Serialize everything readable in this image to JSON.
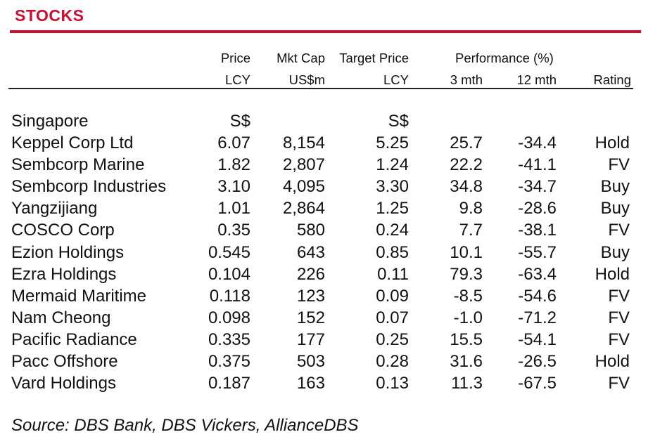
{
  "title": "STOCKS",
  "headers": {
    "price_top": "Price",
    "price_bottom": "LCY",
    "mcap_top": "Mkt Cap",
    "mcap_bottom": "US$m",
    "target_top": "Target Price",
    "target_bottom": "LCY",
    "performance_top": "Performance (%)",
    "m3_bottom": "3 mth",
    "m12_bottom": "12 mth",
    "rating_bottom": "Rating"
  },
  "section": {
    "name": "Singapore",
    "price_currency": "S$",
    "target_currency": "S$"
  },
  "rows": [
    {
      "name": "Keppel Corp Ltd",
      "price": "6.07",
      "mcap": "8,154",
      "target": "5.25",
      "m3": "25.7",
      "m12": "-34.4",
      "rating": "Hold"
    },
    {
      "name": "Sembcorp Marine",
      "price": "1.82",
      "mcap": "2,807",
      "target": "1.24",
      "m3": "22.2",
      "m12": "-41.1",
      "rating": "FV"
    },
    {
      "name": "Sembcorp Industries",
      "price": "3.10",
      "mcap": "4,095",
      "target": "3.30",
      "m3": "34.8",
      "m12": "-34.7",
      "rating": "Buy"
    },
    {
      "name": "Yangzijiang",
      "price": "1.01",
      "mcap": "2,864",
      "target": "1.25",
      "m3": "9.8",
      "m12": "-28.6",
      "rating": "Buy"
    },
    {
      "name": "COSCO Corp",
      "price": "0.35",
      "mcap": "580",
      "target": "0.24",
      "m3": "7.7",
      "m12": "-38.1",
      "rating": "FV"
    },
    {
      "name": "Ezion Holdings",
      "price": "0.545",
      "mcap": "643",
      "target": "0.85",
      "m3": "10.1",
      "m12": "-55.7",
      "rating": "Buy"
    },
    {
      "name": "Ezra Holdings",
      "price": "0.104",
      "mcap": "226",
      "target": "0.11",
      "m3": "79.3",
      "m12": "-63.4",
      "rating": "Hold"
    },
    {
      "name": "Mermaid Maritime",
      "price": "0.118",
      "mcap": "123",
      "target": "0.09",
      "m3": "-8.5",
      "m12": "-54.6",
      "rating": "FV"
    },
    {
      "name": "Nam Cheong",
      "price": "0.098",
      "mcap": "152",
      "target": "0.07",
      "m3": "-1.0",
      "m12": "-71.2",
      "rating": "FV"
    },
    {
      "name": "Pacific Radiance",
      "price": "0.335",
      "mcap": "177",
      "target": "0.25",
      "m3": "15.5",
      "m12": "-54.1",
      "rating": "FV"
    },
    {
      "name": "Pacc Offshore",
      "price": "0.375",
      "mcap": "503",
      "target": "0.28",
      "m3": "31.6",
      "m12": "-26.5",
      "rating": "Hold"
    },
    {
      "name": "Vard Holdings",
      "price": "0.187",
      "mcap": "163",
      "target": "0.13",
      "m3": "11.3",
      "m12": "-67.5",
      "rating": "FV"
    }
  ],
  "source": "Source: DBS Bank, DBS Vickers, AllianceDBS",
  "colors": {
    "accent": "#c8102e",
    "text": "#111111",
    "rule": "#222222"
  }
}
